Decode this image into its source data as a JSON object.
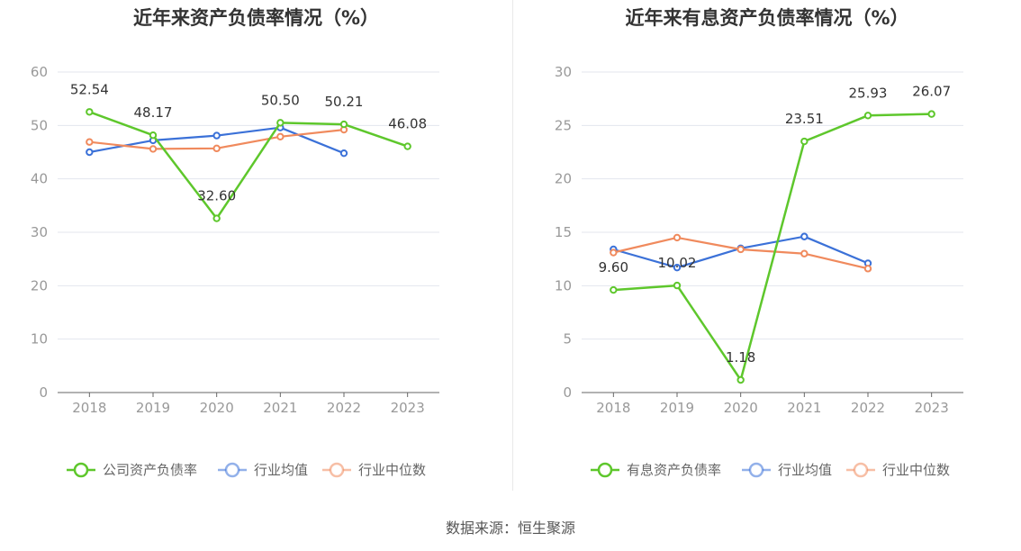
{
  "source_label": "数据来源：恒生聚源",
  "colors": {
    "company": "#5ec72c",
    "avg": "#3b71d8",
    "median": "#f08a5d"
  },
  "chart_data": [
    {
      "type": "line",
      "title": "近年来资产负债率情况（%）",
      "x": [
        "2018",
        "2019",
        "2020",
        "2021",
        "2022",
        "2023"
      ],
      "ylim": [
        0,
        60
      ],
      "yticks": [
        0,
        10,
        20,
        30,
        40,
        50,
        60
      ],
      "series": [
        {
          "key": "company",
          "name": "公司资产负债率",
          "values": [
            52.54,
            48.17,
            32.6,
            50.5,
            50.21,
            46.08
          ],
          "labels": [
            "52.54",
            "48.17",
            "32.60",
            "50.50",
            "50.21",
            "46.08"
          ]
        },
        {
          "key": "avg",
          "name": "行业均值",
          "values": [
            45.0,
            47.2,
            48.1,
            49.6,
            44.8,
            null
          ]
        },
        {
          "key": "median",
          "name": "行业中位数",
          "values": [
            46.9,
            45.6,
            45.7,
            47.9,
            49.2,
            null
          ]
        }
      ]
    },
    {
      "type": "line",
      "title": "近年来有息资产负债率情况（%）",
      "x": [
        "2018",
        "2019",
        "2020",
        "2021",
        "2022",
        "2023"
      ],
      "ylim": [
        0,
        30
      ],
      "yticks": [
        0,
        5,
        10,
        15,
        20,
        25,
        30
      ],
      "series": [
        {
          "key": "company",
          "name": "有息资产负债率",
          "values": [
            9.6,
            10.02,
            1.18,
            23.51,
            25.93,
            26.07
          ],
          "labels": [
            "9.60",
            "10.02",
            "1.18",
            "23.51",
            "25.93",
            "26.07"
          ]
        },
        {
          "key": "avg",
          "name": "行业均值",
          "values": [
            13.4,
            11.7,
            13.5,
            14.6,
            12.1,
            null
          ]
        },
        {
          "key": "median",
          "name": "行业中位数",
          "values": [
            13.1,
            14.5,
            13.4,
            13.0,
            11.6,
            null
          ]
        }
      ]
    }
  ]
}
